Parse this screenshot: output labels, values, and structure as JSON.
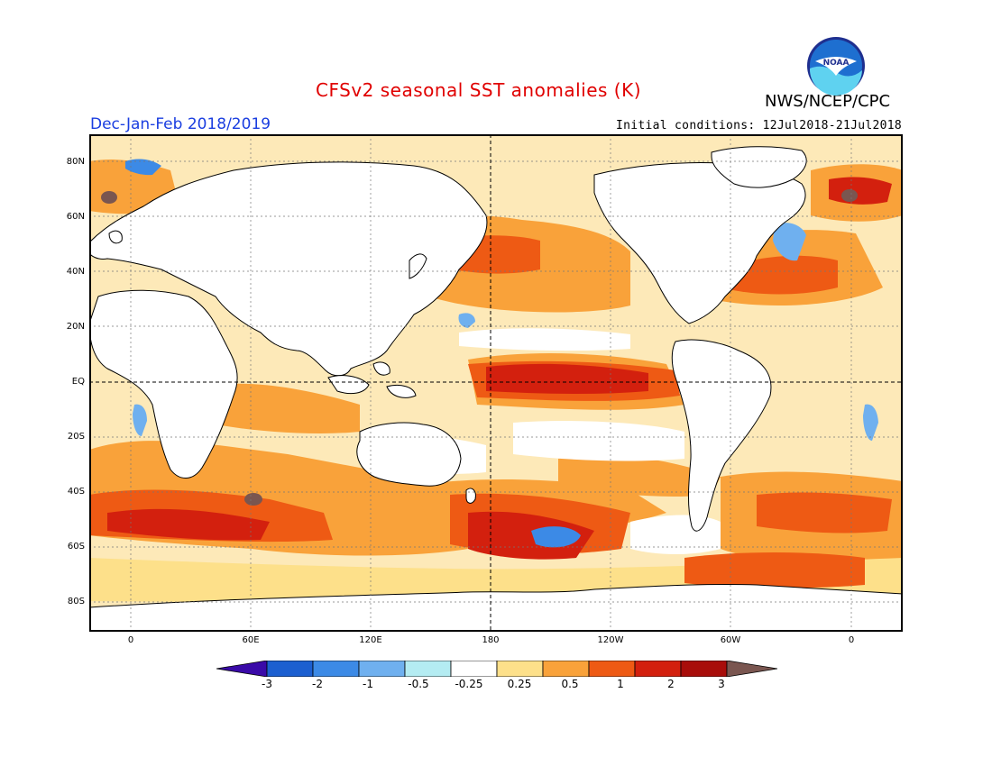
{
  "header": {
    "title": "CFSv2 seasonal SST anomalies (K)",
    "agency": "NWS/NCEP/CPC",
    "season": "Dec-Jan-Feb 2018/2019",
    "initial_conditions": "Initial conditions: 12Jul2018-21Jul2018",
    "logo_text": "NOAA"
  },
  "axes": {
    "lat_labels": [
      "80N",
      "60N",
      "40N",
      "20N",
      "EQ",
      "20S",
      "40S",
      "60S",
      "80S"
    ],
    "lon_labels": [
      "0",
      "60E",
      "120E",
      "180",
      "120W",
      "60W",
      "0"
    ]
  },
  "colorbar": {
    "labels": [
      "-3",
      "-2",
      "-1",
      "-0.5",
      "-0.25",
      "0.25",
      "0.5",
      "1",
      "2",
      "3"
    ],
    "colors": [
      "#3a0aa8",
      "#1c5fd0",
      "#3c8ae6",
      "#6fb0ef",
      "#b4ecf2",
      "#ffffff",
      "#fde08a",
      "#f9a23a",
      "#ee5a14",
      "#d3200e",
      "#a80d0a",
      "#7a5650"
    ]
  },
  "colors": {
    "title": "#e00000",
    "season": "#1a3ee0",
    "land": "#ffffff",
    "coast": "#000000"
  }
}
